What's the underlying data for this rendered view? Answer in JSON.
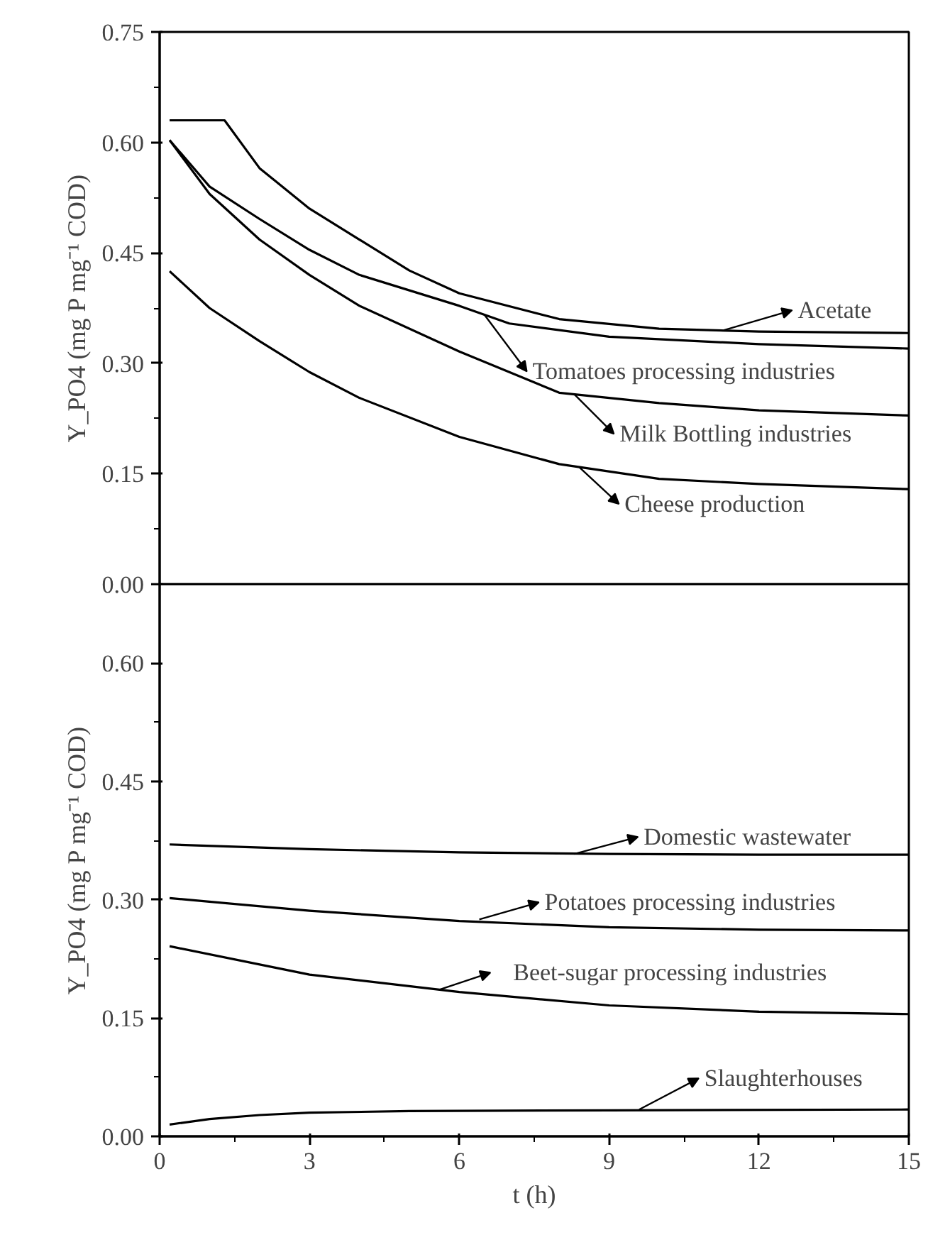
{
  "chart_data": [
    {
      "type": "line",
      "ylabel": "Y_PO4 (mg P mg⁻¹ COD)",
      "tick_labels": "y",
      "xlim": [
        0,
        15
      ],
      "xticks": [
        0,
        3,
        6,
        9,
        12,
        15
      ],
      "ylim": [
        0,
        0.75
      ],
      "yticks": [
        {
          "value": 0,
          "label": "0.00"
        },
        0.15,
        {
          "value": 0.3,
          "label": "0.30"
        },
        0.45,
        {
          "value": 0.6,
          "label": "0.60"
        },
        0.75
      ],
      "grid": false,
      "marker": "none",
      "line_style": "solid",
      "series": [
        {
          "color": "#000000",
          "x": [
            0.2,
            1.3,
            2,
            3,
            4,
            5,
            6,
            8,
            10,
            12,
            15
          ],
          "values": [
            0.63,
            0.63,
            0.565,
            0.51,
            0.468,
            0.426,
            0.395,
            0.36,
            0.347,
            0.343,
            0.341
          ]
        },
        {
          "color": "#000000",
          "x": [
            0.2,
            1,
            2,
            3,
            4,
            6,
            7,
            9,
            12,
            15
          ],
          "values": [
            0.603,
            0.54,
            0.496,
            0.454,
            0.42,
            0.378,
            0.354,
            0.336,
            0.326,
            0.32
          ]
        },
        {
          "color": "#000000",
          "x": [
            0.2,
            1,
            2,
            3,
            4,
            6,
            8,
            10,
            12,
            15
          ],
          "values": [
            0.603,
            0.53,
            0.468,
            0.42,
            0.378,
            0.316,
            0.26,
            0.246,
            0.236,
            0.229
          ]
        },
        {
          "color": "#000000",
          "x": [
            0.2,
            1,
            2,
            3,
            4,
            6,
            8,
            10,
            12,
            15
          ],
          "values": [
            0.425,
            0.375,
            0.33,
            0.288,
            0.253,
            0.2,
            0.163,
            0.143,
            0.136,
            0.129
          ]
        }
      ],
      "annotations": [
        {
          "text": "Acetate",
          "x": 11.3,
          "y": 0.345
        },
        {
          "text": "Tomatoes processing industries",
          "x": 6.5,
          "y": 0.366
        },
        {
          "text": "Milk Bottling industries",
          "x": 8.3,
          "y": 0.258
        },
        {
          "text": "Cheese production",
          "x": 8.4,
          "y": 0.159
        }
      ]
    },
    {
      "type": "line",
      "xlabel": "t (h)",
      "ylabel": "Y_PO4 (mg P mg⁻¹ COD)",
      "xlim": [
        0,
        15
      ],
      "xticks": [
        0,
        3,
        6,
        9,
        12,
        15
      ],
      "ylim": [
        0,
        0.7
      ],
      "yticks": [
        {
          "value": 0,
          "label": "0.00"
        },
        0.15,
        {
          "value": 0.3,
          "label": "0.30"
        },
        0.45,
        {
          "value": 0.6,
          "label": "0.60"
        }
      ],
      "grid": false,
      "marker": "none",
      "line_style": "solid",
      "series": [
        {
          "color": "#000000",
          "x": [
            0.2,
            3,
            6,
            9,
            12,
            15
          ],
          "values": [
            0.37,
            0.364,
            0.36,
            0.358,
            0.357,
            0.357
          ]
        },
        {
          "color": "#000000",
          "x": [
            0.2,
            3,
            6,
            9,
            12,
            15
          ],
          "values": [
            0.302,
            0.286,
            0.273,
            0.265,
            0.262,
            0.261
          ]
        },
        {
          "color": "#000000",
          "x": [
            0.2,
            3,
            6,
            9,
            12,
            15
          ],
          "values": [
            0.241,
            0.205,
            0.183,
            0.166,
            0.158,
            0.155
          ]
        },
        {
          "color": "#000000",
          "x": [
            0.2,
            1,
            2,
            3,
            5,
            9,
            15
          ],
          "values": [
            0.015,
            0.022,
            0.027,
            0.03,
            0.032,
            0.033,
            0.034
          ]
        }
      ],
      "annotations": [
        {
          "text": "Domestic wastewater",
          "x": 8.3,
          "y": 0.358
        },
        {
          "text": "Potatoes processing industries",
          "x": 6.4,
          "y": 0.275
        },
        {
          "text": "Beet-sugar processing industries",
          "x": 5.6,
          "y": 0.186
        },
        {
          "text": "Slaughterhouses",
          "x": 9.6,
          "y": 0.034
        }
      ]
    }
  ]
}
